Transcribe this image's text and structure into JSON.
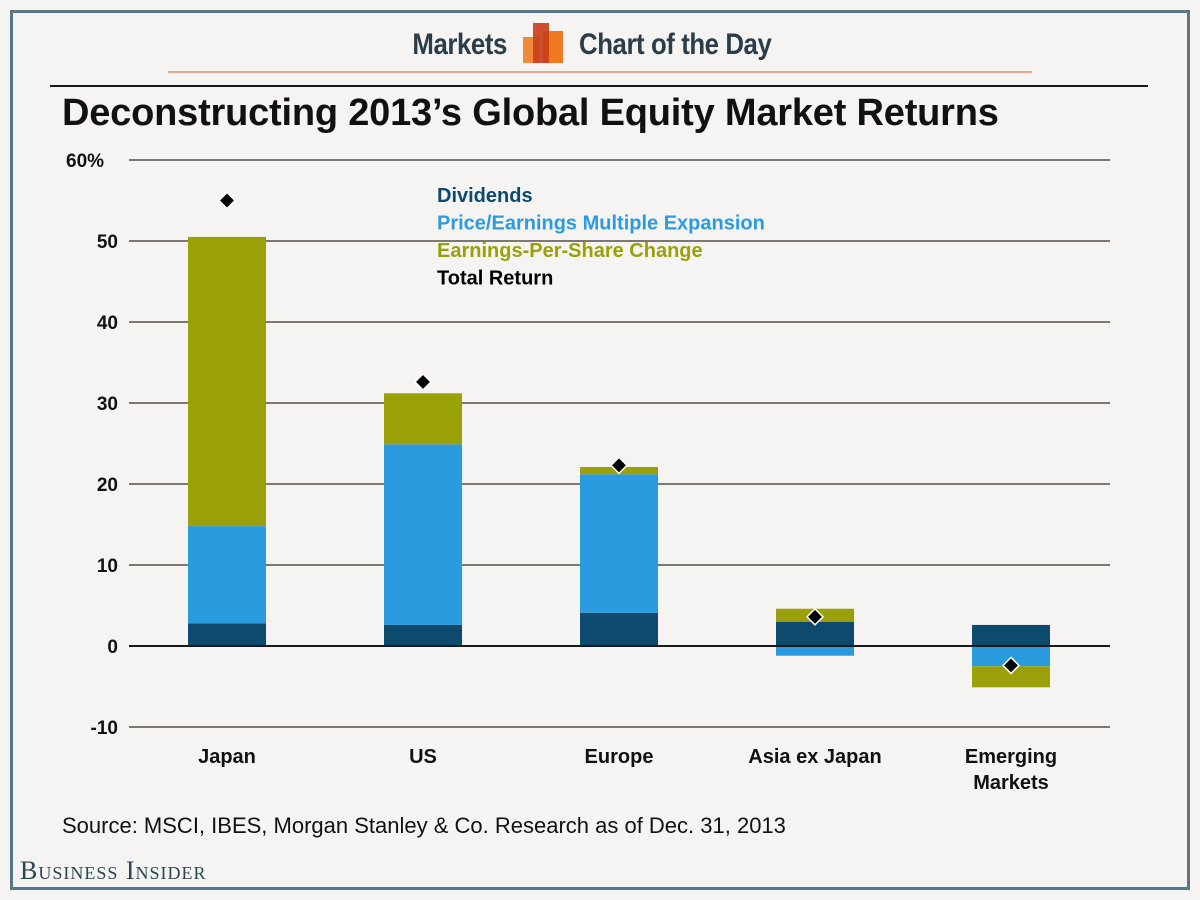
{
  "header": {
    "left_word": "Markets",
    "right_word": "Chart of the Day",
    "logo_icon": "bar-chart-logo-icon",
    "logo_colors": [
      "#ee8a3a",
      "#c9401a",
      "#f07a22"
    ]
  },
  "source": "Source: MSCI, IBES, Morgan Stanley & Co. Research as of Dec. 31, 2013",
  "brand": "Business Insider",
  "colors": {
    "frame": "#5a7684",
    "dividends": "#0d4a6e",
    "pe": "#2b9be0",
    "eps": "#9aa108",
    "total": "#000000"
  },
  "chart_data": {
    "type": "bar",
    "stacked": true,
    "title": "Deconstructing 2013’s Global Equity Market Returns",
    "xlabel": "",
    "ylabel": "",
    "ylim": [
      -10,
      60
    ],
    "yticks": [
      60,
      50,
      40,
      30,
      20,
      10,
      0,
      -10
    ],
    "ytick_labels": [
      "60%",
      "50",
      "40",
      "30",
      "20",
      "10",
      "0",
      "-10"
    ],
    "grid": true,
    "legend_position": "top-center",
    "categories": [
      "Japan",
      "US",
      "Europe",
      "Asia ex Japan",
      "Emerging Markets"
    ],
    "category_labels": [
      [
        "Japan"
      ],
      [
        "US"
      ],
      [
        "Europe"
      ],
      [
        "Asia ex Japan"
      ],
      [
        "Emerging",
        "Markets"
      ]
    ],
    "series": [
      {
        "name": "Dividends",
        "values": [
          2.8,
          2.6,
          4.1,
          3.0,
          2.6
        ]
      },
      {
        "name": "Price/Earnings Multiple Expansion",
        "values": [
          12.0,
          22.3,
          17.1,
          -1.2,
          -2.5
        ]
      },
      {
        "name": "Earnings-Per-Share Change",
        "values": [
          35.7,
          6.3,
          0.9,
          1.6,
          -2.6
        ]
      }
    ],
    "markers": {
      "name": "Total Return",
      "values": [
        55.0,
        32.6,
        22.3,
        3.6,
        -2.4
      ]
    },
    "legend": [
      "Dividends",
      "Price/Earnings Multiple Expansion",
      "Earnings-Per-Share Change",
      "Total Return"
    ]
  }
}
